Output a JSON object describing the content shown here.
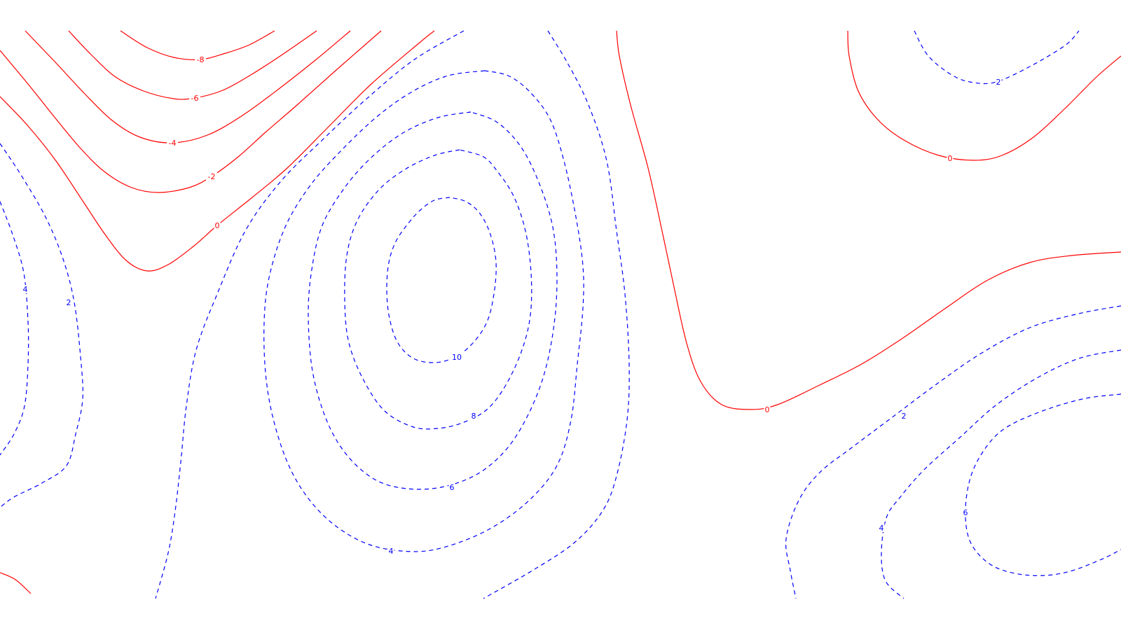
{
  "chart_data": {
    "type": "contour",
    "title": "",
    "xlabel": "",
    "ylabel": "",
    "grid": false,
    "legend": "none",
    "colors": {
      "negative_and_zero": "#ff0000",
      "positive": "#0000ff"
    },
    "line_styles": {
      "negative_and_zero": "solid",
      "positive": "dashed"
    },
    "levels": [
      -8,
      -6,
      -4,
      -2,
      0,
      2,
      4,
      6,
      8,
      10
    ],
    "contours": [
      {
        "level": -8,
        "label": "-8",
        "points": [
          [
            172,
            44
          ],
          [
            210,
            68
          ],
          [
            248,
            82
          ],
          [
            286,
            85
          ],
          [
            322,
            76
          ],
          [
            356,
            64
          ],
          [
            392,
            44
          ]
        ],
        "label_at": [
          286,
          85
        ]
      },
      {
        "level": -6,
        "label": "-6",
        "points": [
          [
            98,
            44
          ],
          [
            130,
            78
          ],
          [
            165,
            110
          ],
          [
            205,
            130
          ],
          [
            248,
            141
          ],
          [
            278,
            140
          ],
          [
            318,
            129
          ],
          [
            358,
            107
          ],
          [
            400,
            80
          ],
          [
            452,
            44
          ]
        ],
        "label_at": [
          278,
          140
        ]
      },
      {
        "level": -4,
        "label": "-4",
        "points": [
          [
            36,
            44
          ],
          [
            80,
            90
          ],
          [
            120,
            133
          ],
          [
            160,
            172
          ],
          [
            200,
            196
          ],
          [
            246,
            204
          ],
          [
            296,
            193
          ],
          [
            346,
            165
          ],
          [
            398,
            127
          ],
          [
            450,
            86
          ],
          [
            500,
            44
          ]
        ],
        "label_at": [
          246,
          204
        ]
      },
      {
        "level": -2,
        "label": "-2",
        "points": [
          [
            0,
            72
          ],
          [
            40,
            120
          ],
          [
            80,
            170
          ],
          [
            115,
            212
          ],
          [
            150,
            246
          ],
          [
            188,
            268
          ],
          [
            226,
            275
          ],
          [
            270,
            268
          ],
          [
            302,
            252
          ],
          [
            340,
            224
          ],
          [
            380,
            188
          ],
          [
            424,
            150
          ],
          [
            480,
            100
          ],
          [
            544,
            44
          ]
        ],
        "label_at": [
          302,
          252
        ]
      },
      {
        "level": 0,
        "label": "0",
        "points": [
          [
            0,
            138
          ],
          [
            40,
            180
          ],
          [
            80,
            230
          ],
          [
            120,
            290
          ],
          [
            150,
            335
          ],
          [
            180,
            372
          ],
          [
            210,
            387
          ],
          [
            240,
            378
          ],
          [
            276,
            352
          ],
          [
            310,
            322
          ],
          [
            360,
            282
          ],
          [
            410,
            240
          ],
          [
            470,
            180
          ],
          [
            530,
            120
          ],
          [
            600,
            60
          ],
          [
            620,
            44
          ]
        ],
        "label_at": [
          310,
          322
        ]
      },
      {
        "level": 0,
        "label": "0",
        "points": [
          [
            0,
            818
          ],
          [
            22,
            828
          ],
          [
            44,
            848
          ]
        ],
        "label_at": null
      },
      {
        "level": 0,
        "label": "0",
        "points": [
          [
            880,
            44
          ],
          [
            884,
            80
          ],
          [
            900,
            150
          ],
          [
            925,
            240
          ],
          [
            945,
            330
          ],
          [
            962,
            410
          ],
          [
            980,
            490
          ],
          [
            1000,
            545
          ],
          [
            1030,
            578
          ],
          [
            1072,
            585
          ],
          [
            1110,
            578
          ],
          [
            1170,
            550
          ],
          [
            1230,
            520
          ],
          [
            1290,
            482
          ],
          [
            1350,
            440
          ],
          [
            1410,
            400
          ],
          [
            1470,
            375
          ],
          [
            1530,
            365
          ],
          [
            1600,
            360
          ]
        ],
        "label_at": [
          1095,
          585
        ]
      },
      {
        "level": 0,
        "label": "0",
        "points": [
          [
            1210,
            44
          ],
          [
            1212,
            80
          ],
          [
            1225,
            130
          ],
          [
            1252,
            170
          ],
          [
            1290,
            200
          ],
          [
            1340,
            222
          ],
          [
            1390,
            229
          ],
          [
            1430,
            222
          ],
          [
            1475,
            196
          ],
          [
            1520,
            155
          ],
          [
            1565,
            110
          ],
          [
            1600,
            80
          ]
        ],
        "label_at": [
          1356,
          226
        ]
      },
      {
        "level": 2,
        "label": "2",
        "points": [
          [
            0,
            205
          ],
          [
            30,
            250
          ],
          [
            65,
            310
          ],
          [
            90,
            370
          ],
          [
            106,
            432
          ],
          [
            115,
            510
          ],
          [
            118,
            570
          ],
          [
            108,
            620
          ],
          [
            95,
            665
          ],
          [
            60,
            690
          ],
          [
            20,
            710
          ],
          [
            0,
            725
          ]
        ],
        "label_at": [
          98,
          432
        ]
      },
      {
        "level": 2,
        "label": "2",
        "points": [
          [
            662,
            44
          ],
          [
            590,
            86
          ],
          [
            520,
            144
          ],
          [
            460,
            200
          ],
          [
            400,
            260
          ],
          [
            350,
            330
          ],
          [
            310,
            420
          ],
          [
            280,
            500
          ],
          [
            266,
            580
          ],
          [
            258,
            660
          ],
          [
            250,
            730
          ],
          [
            240,
            790
          ],
          [
            222,
            855
          ]
        ],
        "label_at": null
      },
      {
        "level": 2,
        "label": "2",
        "points": [
          [
            782,
            44
          ],
          [
            810,
            90
          ],
          [
            840,
            150
          ],
          [
            866,
            230
          ],
          [
            880,
            330
          ],
          [
            892,
            420
          ],
          [
            898,
            520
          ],
          [
            895,
            600
          ],
          [
            880,
            680
          ],
          [
            860,
            730
          ],
          [
            820,
            775
          ],
          [
            760,
            815
          ],
          [
            690,
            855
          ]
        ],
        "label_at": null
      },
      {
        "level": 2,
        "label": "2",
        "points": [
          [
            1305,
            44
          ],
          [
            1325,
            80
          ],
          [
            1360,
            108
          ],
          [
            1390,
            118
          ],
          [
            1422,
            117
          ],
          [
            1470,
            95
          ],
          [
            1520,
            65
          ],
          [
            1540,
            44
          ]
        ],
        "label_at": [
          1425,
          117
        ]
      },
      {
        "level": 2,
        "label": "2",
        "points": [
          [
            1600,
            437
          ],
          [
            1540,
            448
          ],
          [
            1470,
            468
          ],
          [
            1400,
            505
          ],
          [
            1335,
            550
          ],
          [
            1275,
            595
          ],
          [
            1215,
            640
          ],
          [
            1170,
            675
          ],
          [
            1140,
            715
          ],
          [
            1122,
            770
          ],
          [
            1128,
            815
          ],
          [
            1136,
            855
          ]
        ],
        "label_at": [
          1290,
          594
        ]
      },
      {
        "level": 4,
        "label": "4",
        "points": [
          [
            0,
            288
          ],
          [
            18,
            335
          ],
          [
            34,
            390
          ],
          [
            40,
            460
          ],
          [
            40,
            520
          ],
          [
            35,
            580
          ],
          [
            20,
            620
          ],
          [
            0,
            650
          ]
        ],
        "label_at": [
          36,
          413
        ]
      },
      {
        "level": 4,
        "label": "4",
        "points": [
          [
            692,
            101
          ],
          [
            640,
            108
          ],
          [
            590,
            130
          ],
          [
            540,
            165
          ],
          [
            490,
            212
          ],
          [
            445,
            262
          ],
          [
            410,
            318
          ],
          [
            388,
            380
          ],
          [
            378,
            440
          ],
          [
            378,
            520
          ],
          [
            388,
            590
          ],
          [
            410,
            660
          ],
          [
            440,
            712
          ],
          [
            480,
            752
          ],
          [
            530,
            779
          ],
          [
            590,
            788
          ],
          [
            640,
            780
          ],
          [
            700,
            755
          ],
          [
            755,
            715
          ],
          [
            795,
            665
          ],
          [
            815,
            600
          ],
          [
            824,
            520
          ],
          [
            832,
            440
          ],
          [
            832,
            380
          ],
          [
            822,
            310
          ],
          [
            805,
            230
          ],
          [
            785,
            170
          ],
          [
            755,
            130
          ],
          [
            725,
            108
          ],
          [
            692,
            101
          ]
        ],
        "label_at": [
          558,
          787
        ]
      },
      {
        "level": 4,
        "label": "4",
        "points": [
          [
            1600,
            500
          ],
          [
            1540,
            512
          ],
          [
            1480,
            540
          ],
          [
            1420,
            580
          ],
          [
            1370,
            625
          ],
          [
            1320,
            670
          ],
          [
            1285,
            710
          ],
          [
            1265,
            740
          ],
          [
            1258,
            790
          ],
          [
            1264,
            830
          ],
          [
            1290,
            855
          ]
        ],
        "label_at": [
          1258,
          754
        ]
      },
      {
        "level": 6,
        "label": "6",
        "points": [
          [
            672,
            160
          ],
          [
            625,
            168
          ],
          [
            575,
            190
          ],
          [
            530,
            225
          ],
          [
            492,
            268
          ],
          [
            460,
            322
          ],
          [
            445,
            385
          ],
          [
            440,
            450
          ],
          [
            446,
            530
          ],
          [
            466,
            600
          ],
          [
            495,
            650
          ],
          [
            535,
            685
          ],
          [
            580,
            698
          ],
          [
            630,
            696
          ],
          [
            680,
            678
          ],
          [
            720,
            645
          ],
          [
            750,
            600
          ],
          [
            775,
            540
          ],
          [
            790,
            470
          ],
          [
            795,
            400
          ],
          [
            790,
            330
          ],
          [
            772,
            268
          ],
          [
            745,
            212
          ],
          [
            710,
            175
          ],
          [
            672,
            160
          ]
        ],
        "label_at": [
          645,
          696
        ]
      },
      {
        "level": 6,
        "label": "6",
        "points": [
          [
            1600,
            563
          ],
          [
            1545,
            570
          ],
          [
            1480,
            590
          ],
          [
            1430,
            615
          ],
          [
            1400,
            650
          ],
          [
            1383,
            690
          ],
          [
            1378,
            740
          ],
          [
            1388,
            780
          ],
          [
            1420,
            810
          ],
          [
            1470,
            822
          ],
          [
            1520,
            818
          ],
          [
            1570,
            800
          ],
          [
            1600,
            785
          ]
        ],
        "label_at": [
          1378,
          732
        ]
      },
      {
        "level": 8,
        "label": "8",
        "points": [
          [
            656,
            214
          ],
          [
            620,
            222
          ],
          [
            578,
            242
          ],
          [
            540,
            272
          ],
          [
            510,
            315
          ],
          [
            495,
            365
          ],
          [
            492,
            430
          ],
          [
            498,
            490
          ],
          [
            520,
            545
          ],
          [
            550,
            588
          ],
          [
            590,
            610
          ],
          [
            625,
            612
          ],
          [
            660,
            604
          ],
          [
            695,
            585
          ],
          [
            722,
            550
          ],
          [
            745,
            500
          ],
          [
            757,
            450
          ],
          [
            758,
            390
          ],
          [
            750,
            330
          ],
          [
            733,
            280
          ],
          [
            710,
            245
          ],
          [
            690,
            224
          ],
          [
            656,
            214
          ]
        ],
        "label_at": [
          676,
          594
        ]
      },
      {
        "level": 10,
        "label": "10",
        "points": [
          [
            642,
            282
          ],
          [
            620,
            286
          ],
          [
            600,
            300
          ],
          [
            582,
            320
          ],
          [
            565,
            345
          ],
          [
            555,
            375
          ],
          [
            552,
            415
          ],
          [
            556,
            455
          ],
          [
            568,
            490
          ],
          [
            590,
            512
          ],
          [
            620,
            518
          ],
          [
            650,
            510
          ],
          [
            675,
            490
          ],
          [
            695,
            460
          ],
          [
            705,
            420
          ],
          [
            708,
            375
          ],
          [
            700,
            335
          ],
          [
            685,
            305
          ],
          [
            665,
            288
          ],
          [
            642,
            282
          ]
        ],
        "label_at": [
          652,
          510
        ]
      }
    ]
  }
}
